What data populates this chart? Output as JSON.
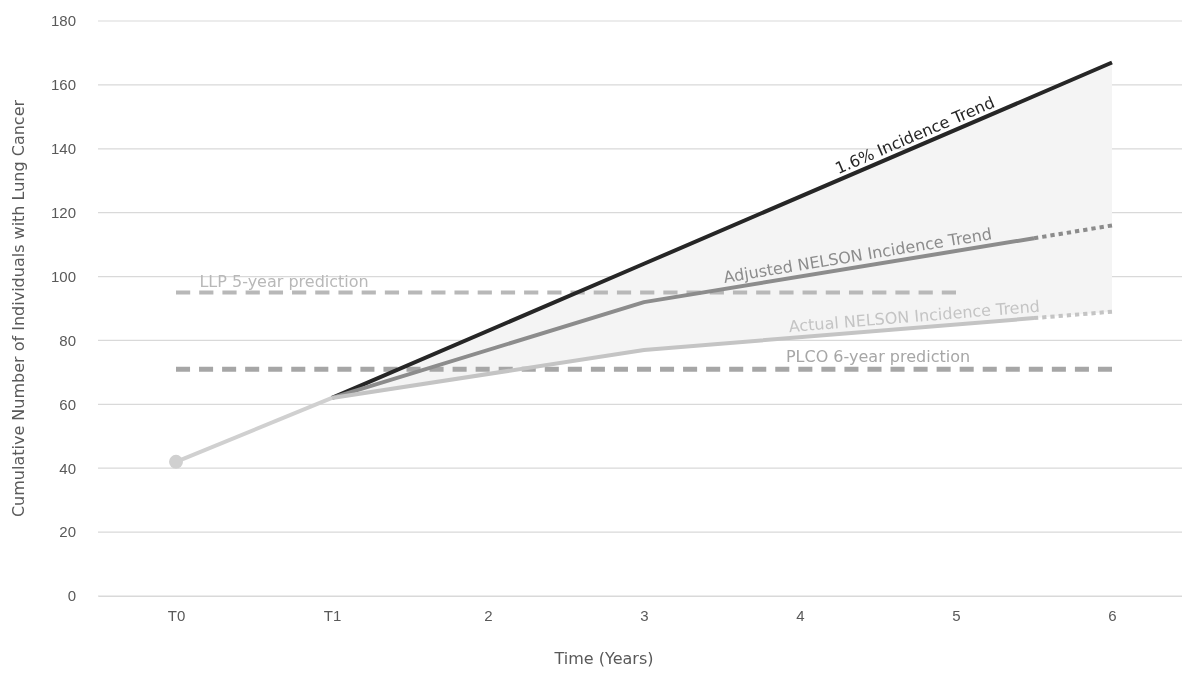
{
  "chart_data": {
    "type": "line",
    "xlabel": "Time (Years)",
    "ylabel": "Cumulative Number of Individuals with Lung Cancer",
    "xlim": [
      -0.5,
      6.5
    ],
    "xticks": [
      {
        "value": 0,
        "label": "T0"
      },
      {
        "value": 1,
        "label": "T1"
      },
      2,
      3,
      4,
      5,
      6
    ],
    "ylim": [
      0,
      180
    ],
    "yticks": [
      0,
      20,
      40,
      60,
      80,
      100,
      120,
      140,
      160,
      180
    ],
    "grid": "y",
    "legend": false,
    "series": [
      {
        "name": "LLP 5-year prediction",
        "color": "#b8b8b8",
        "line_style": "dashed",
        "x": [
          0,
          5
        ],
        "values": [
          95,
          95
        ]
      },
      {
        "name": "PLCO 6-year prediction",
        "color": "#a6a6a6",
        "line_style": "dashed",
        "x": [
          0,
          6
        ],
        "values": [
          71,
          71
        ]
      },
      {
        "name": "1.6% Incidence Trend",
        "color": "#262626",
        "line_style": "solid",
        "x": [
          1,
          3,
          6
        ],
        "values": [
          62,
          104,
          167
        ],
        "lower": [
          62,
          77,
          89
        ],
        "upper": [
          62,
          104,
          167
        ]
      },
      {
        "name": "Adjusted NELSON Incidence Trend",
        "color": "#8c8c8c",
        "line_style": "solid",
        "x": [
          1,
          3,
          5.5
        ],
        "values": [
          62,
          92,
          112
        ]
      },
      {
        "color": "#8c8c8c",
        "line_style": "dotted",
        "x": [
          5.5,
          6
        ],
        "values": [
          112,
          116
        ]
      },
      {
        "name": "Actual NELSON Incidence Trend",
        "color": "#c4c4c4",
        "line_style": "solid",
        "x": [
          1,
          3,
          5.5
        ],
        "values": [
          62,
          77,
          87
        ]
      },
      {
        "color": "#c4c4c4",
        "line_style": "dotted",
        "x": [
          5.5,
          6
        ],
        "values": [
          87,
          89
        ]
      },
      {
        "color": "#d0d0d0",
        "line_style": "solid",
        "marker": "circle",
        "x": [
          0,
          1
        ],
        "values": [
          42,
          62
        ]
      }
    ]
  }
}
